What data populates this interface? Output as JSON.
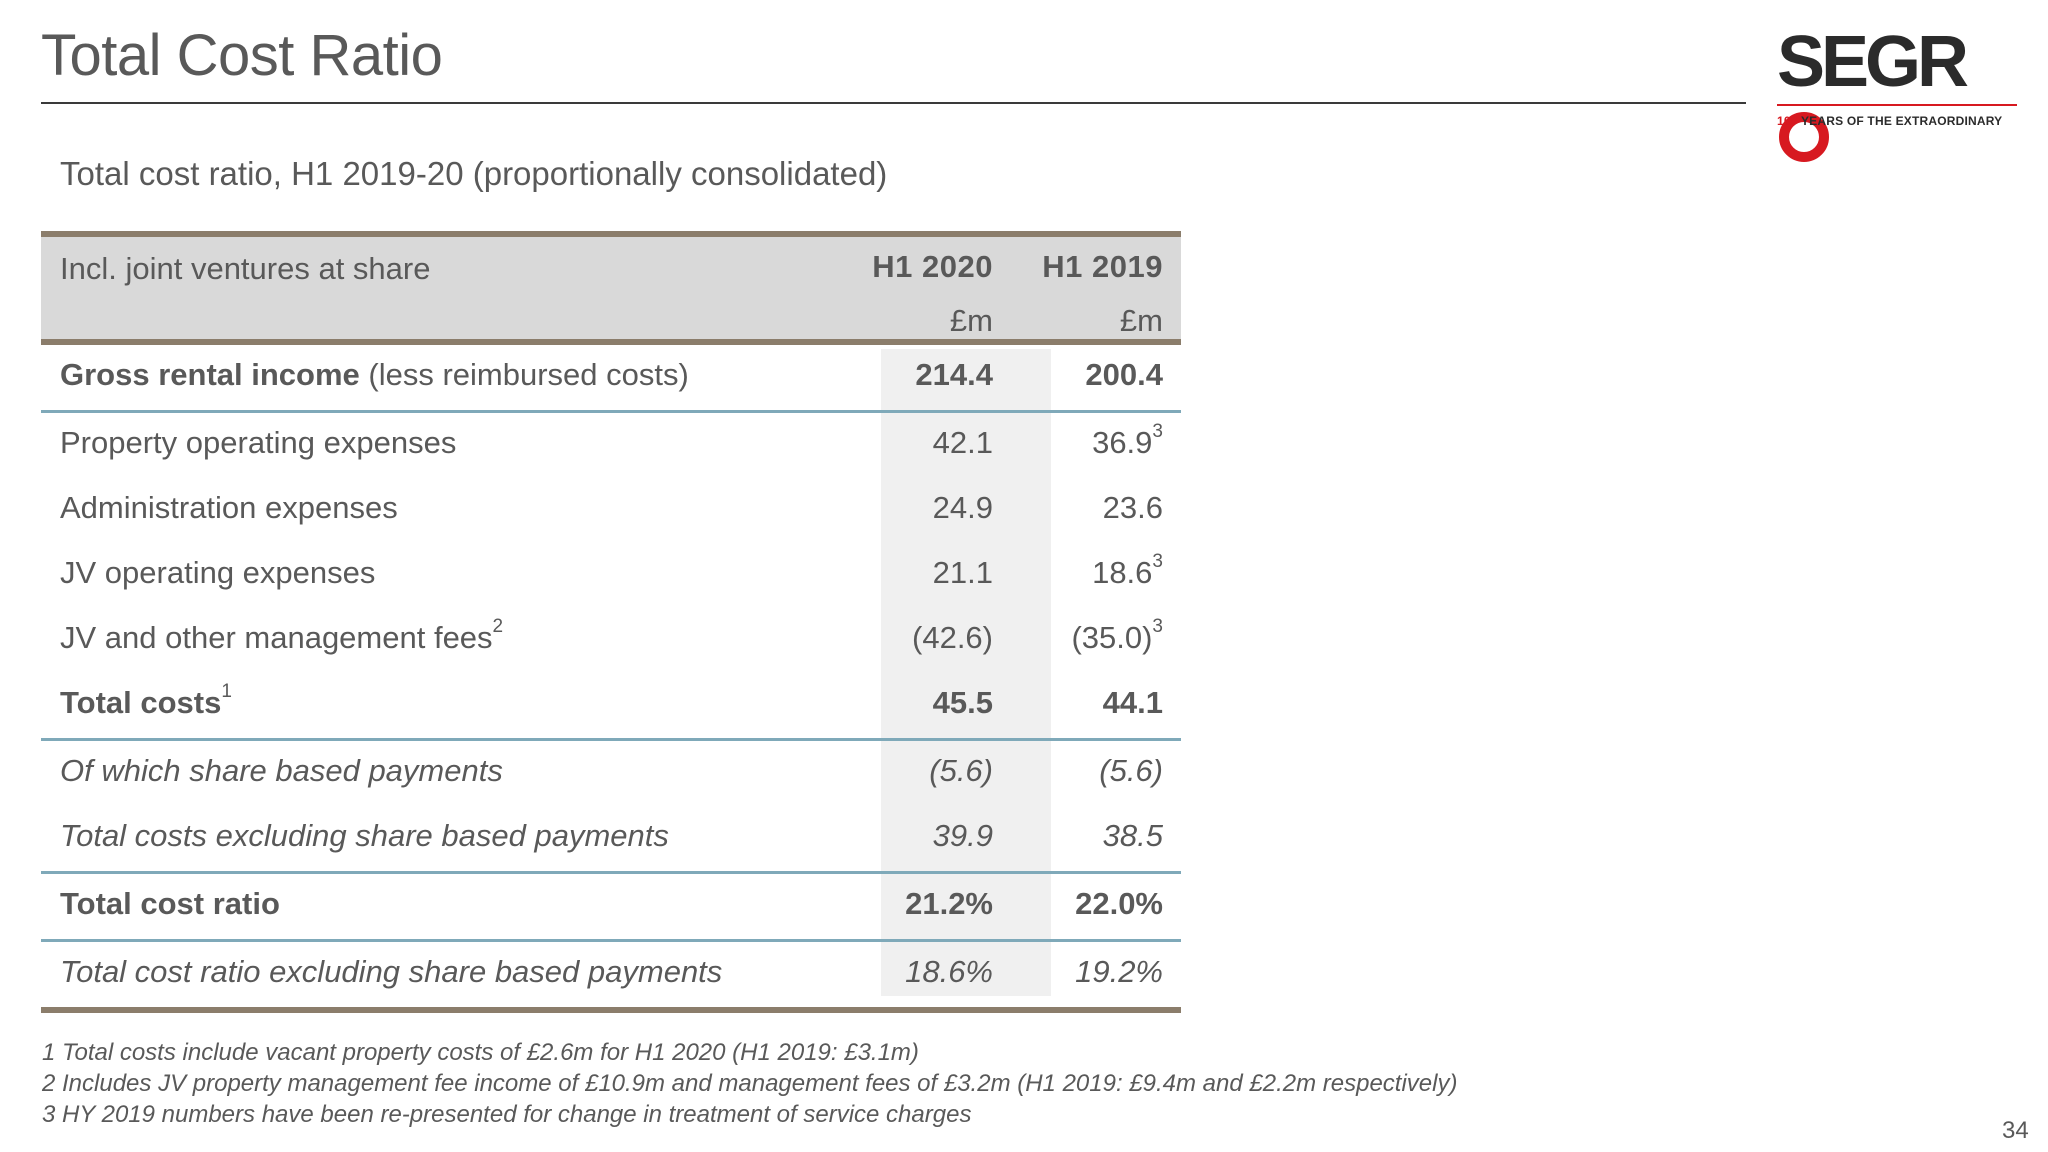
{
  "slide": {
    "title": "Total Cost Ratio",
    "subtitle": "Total cost ratio, H1 2019-20 (proportionally consolidated)",
    "page_number": "34"
  },
  "logo": {
    "word": "SEGR",
    "tag_number": "100",
    "tag_text": "YEARS OF THE EXTRAORDINARY",
    "accent_color": "#d71920"
  },
  "table": {
    "header": {
      "label": "Incl. joint ventures at share",
      "col1_year": "H1 2020",
      "col2_year": "H1 2019",
      "col1_unit": "£m",
      "col2_unit": "£m"
    },
    "rows": [
      {
        "label_bold": "Gross rental income",
        "label_rest": " (less reimbursed costs)",
        "sup": "",
        "v1": "214.4",
        "v2": "200.4",
        "v2_sup": ""
      },
      {
        "label": "Property operating expenses",
        "sup": "",
        "v1": "42.1",
        "v2": "36.9",
        "v2_sup": "3"
      },
      {
        "label": "Administration expenses",
        "sup": "",
        "v1": "24.9",
        "v2": "23.6",
        "v2_sup": ""
      },
      {
        "label": "JV operating expenses",
        "sup": "",
        "v1": "21.1",
        "v2": "18.6",
        "v2_sup": "3"
      },
      {
        "label": "JV and other management fees",
        "sup": "2",
        "v1": "(42.6)",
        "v2": "(35.0)",
        "v2_sup": "3"
      },
      {
        "label_bold": "Total costs",
        "sup": "1",
        "v1": "45.5",
        "v2": "44.1",
        "v2_sup": ""
      },
      {
        "label": "Of which share based payments",
        "sup": "",
        "v1": "(5.6)",
        "v2": "(5.6)",
        "v2_sup": ""
      },
      {
        "label": "Total costs excluding share based payments",
        "sup": "",
        "v1": "39.9",
        "v2": "38.5",
        "v2_sup": ""
      },
      {
        "label_bold": "Total cost ratio",
        "sup": "",
        "v1": "21.2%",
        "v2": "22.0%",
        "v2_sup": ""
      },
      {
        "label": "Total cost ratio excluding share based payments",
        "sup": "",
        "v1": "18.6%",
        "v2": "19.2%",
        "v2_sup": ""
      }
    ]
  },
  "footnotes": [
    "1 Total costs include vacant property costs of £2.6m for H1 2020 (H1 2019: £3.1m)",
    "2 Includes JV property management fee income of £10.9m and management fees of £3.2m (H1 2019: £9.4m and £2.2m respectively)",
    "3 HY 2019 numbers have been re-presented for change in treatment of service charges"
  ]
}
